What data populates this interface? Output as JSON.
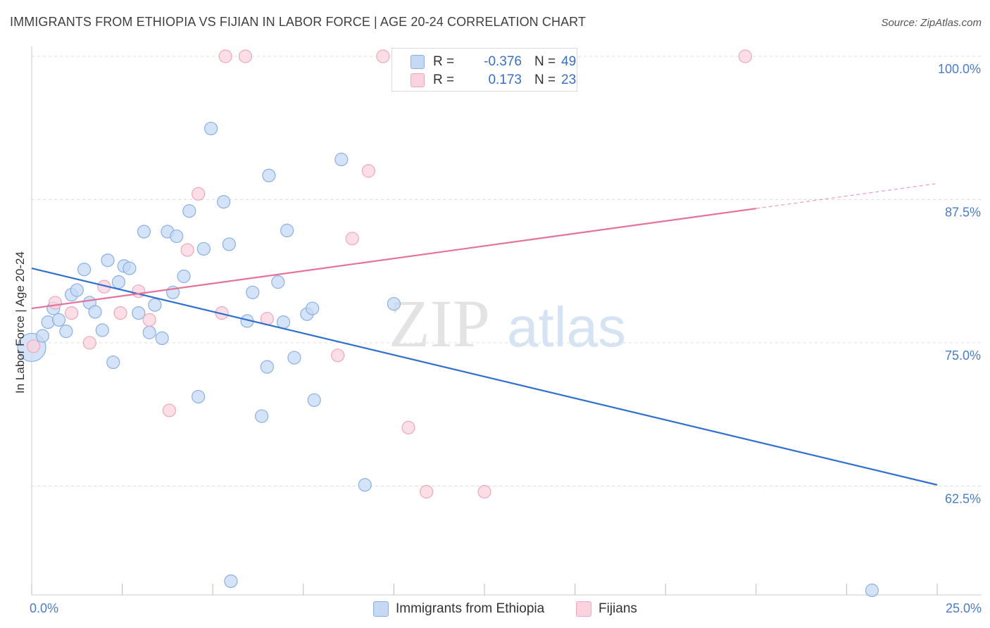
{
  "title": "IMMIGRANTS FROM ETHIOPIA VS FIJIAN IN LABOR FORCE | AGE 20-24 CORRELATION CHART",
  "source": "Source: ZipAtlas.com",
  "watermark": {
    "zip": "ZIP",
    "atlas": "atlas"
  },
  "colors": {
    "blue_fill": "#c5d9f4",
    "blue_stroke": "#8ab0e3",
    "blue_line": "#2f6fd0",
    "pink_fill": "#fbd3df",
    "pink_stroke": "#eea7bd",
    "pink_line": "#e4729b",
    "tick_text": "#4a7cc7",
    "grid": "#dddddd"
  },
  "legend": {
    "rows": [
      {
        "r_label": "R =",
        "r_value": "-0.376",
        "n_label": "N =",
        "n_value": "49"
      },
      {
        "r_label": "R =",
        "r_value": "0.173",
        "n_label": "N =",
        "n_value": "23"
      }
    ]
  },
  "chart_data": {
    "type": "scatter",
    "title": "IMMIGRANTS FROM ETHIOPIA VS FIJIAN IN LABOR FORCE | AGE 20-24 CORRELATION CHART",
    "ylabel": "In Labor Force | Age 20-24",
    "xlim": [
      0,
      25
    ],
    "ylim": [
      51.5,
      101
    ],
    "x_ticks": [
      {
        "value": 0,
        "label": "0.0%"
      },
      {
        "value": 25,
        "label": "25.0%"
      }
    ],
    "x_minor_ticks": [
      2.5,
      5,
      7.5,
      10,
      12.5,
      15,
      17.5,
      20,
      22.5
    ],
    "y_ticks": [
      {
        "value": 62.5,
        "label": "62.5%"
      },
      {
        "value": 75,
        "label": "75.0%"
      },
      {
        "value": 87.5,
        "label": "87.5%"
      },
      {
        "value": 100,
        "label": "100.0%"
      }
    ],
    "grid": true,
    "legend_placement": "top-center",
    "series": [
      {
        "name": "Immigrants from Ethiopia",
        "color": "#c5d9f4",
        "trend": {
          "x0": 0,
          "y0": 81.5,
          "x1": 25,
          "y1": 62.6,
          "dashed_from": null
        },
        "points": [
          [
            0.0,
            74.6,
            2.2
          ],
          [
            0.3,
            75.6,
            1
          ],
          [
            0.45,
            76.8,
            1
          ],
          [
            0.6,
            78.0,
            1
          ],
          [
            0.75,
            77.0,
            1
          ],
          [
            0.95,
            76.0,
            1
          ],
          [
            1.1,
            79.2,
            1
          ],
          [
            1.25,
            79.6,
            1
          ],
          [
            1.45,
            81.4,
            1
          ],
          [
            1.6,
            78.5,
            1
          ],
          [
            1.75,
            77.7,
            1
          ],
          [
            1.95,
            76.1,
            1
          ],
          [
            2.1,
            82.2,
            1
          ],
          [
            2.25,
            73.3,
            1
          ],
          [
            2.4,
            80.3,
            1
          ],
          [
            2.55,
            81.7,
            1
          ],
          [
            2.7,
            81.5,
            1
          ],
          [
            2.95,
            77.6,
            1
          ],
          [
            3.1,
            84.7,
            1
          ],
          [
            3.25,
            75.9,
            1
          ],
          [
            3.4,
            78.3,
            1
          ],
          [
            3.6,
            75.4,
            1
          ],
          [
            3.75,
            84.7,
            1
          ],
          [
            3.9,
            79.4,
            1
          ],
          [
            4.0,
            84.3,
            1
          ],
          [
            4.2,
            80.8,
            1
          ],
          [
            4.35,
            86.5,
            1
          ],
          [
            4.6,
            70.3,
            1
          ],
          [
            4.75,
            83.2,
            1
          ],
          [
            4.95,
            93.7,
            1
          ],
          [
            5.3,
            87.3,
            1
          ],
          [
            5.45,
            83.6,
            1
          ],
          [
            5.5,
            54.2,
            1
          ],
          [
            5.95,
            76.9,
            1
          ],
          [
            6.1,
            79.4,
            1
          ],
          [
            6.35,
            68.6,
            1
          ],
          [
            6.5,
            72.9,
            1
          ],
          [
            6.5,
            72.8,
            0
          ],
          [
            6.5,
            72.8,
            0
          ],
          [
            6.5,
            72.8,
            0
          ],
          [
            6.5,
            72.8,
            0
          ],
          [
            6.5,
            72.8,
            0
          ],
          [
            6.5,
            72.8,
            0
          ],
          [
            6.5,
            72.8,
            0
          ],
          [
            6.55,
            89.6,
            1
          ],
          [
            6.8,
            80.3,
            1
          ],
          [
            6.95,
            76.8,
            1
          ],
          [
            7.25,
            73.7,
            1
          ],
          [
            7.05,
            84.8,
            1
          ]
        ]
      },
      {
        "name": "Fijians",
        "color": "#fbd3df",
        "trend": {
          "x0": 0,
          "y0": 78.0,
          "x1": 25,
          "y1": 88.9,
          "dashed_from": 20.0
        },
        "points": [
          [
            0.05,
            74.7,
            1
          ],
          [
            0.65,
            78.5,
            1
          ],
          [
            1.1,
            77.6,
            1
          ],
          [
            1.6,
            75.0,
            1
          ],
          [
            2.0,
            79.9,
            1
          ],
          [
            2.45,
            77.6,
            1
          ],
          [
            2.95,
            79.5,
            1
          ],
          [
            3.25,
            77.0,
            1
          ],
          [
            3.8,
            69.1,
            1
          ],
          [
            4.3,
            83.1,
            1
          ],
          [
            4.6,
            88.0,
            1
          ],
          [
            5.25,
            77.6,
            1
          ],
          [
            5.35,
            100.0,
            1
          ],
          [
            5.9,
            100.0,
            1
          ],
          [
            6.5,
            77.1,
            1
          ],
          [
            8.45,
            73.9,
            1
          ],
          [
            8.85,
            84.1,
            1
          ],
          [
            9.3,
            90.0,
            1
          ],
          [
            9.7,
            100.0,
            1
          ],
          [
            10.4,
            67.6,
            1
          ],
          [
            10.9,
            62.0,
            1
          ],
          [
            12.5,
            62.0,
            1
          ],
          [
            19.7,
            100.0,
            1
          ]
        ]
      }
    ]
  },
  "extra_points": {
    "Immigrants from Ethiopia": [
      [
        7.6,
        77.5,
        1
      ],
      [
        7.75,
        78.0,
        1
      ],
      [
        7.8,
        70.0,
        1
      ],
      [
        8.55,
        91.0,
        1
      ],
      [
        9.2,
        62.6,
        1
      ],
      [
        10.0,
        78.4,
        1
      ],
      [
        23.2,
        53.4,
        1
      ]
    ]
  }
}
